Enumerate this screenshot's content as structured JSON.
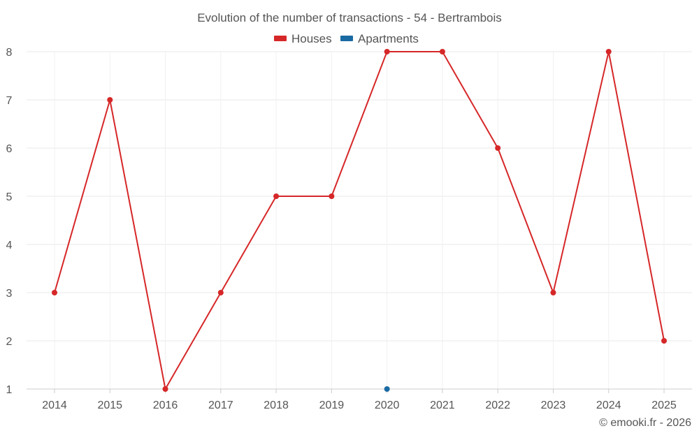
{
  "chart_data": {
    "type": "line",
    "title": "Evolution of the number of transactions - 54 - Bertrambois",
    "categories": [
      "2014",
      "2015",
      "2016",
      "2017",
      "2018",
      "2019",
      "2020",
      "2021",
      "2022",
      "2023",
      "2024",
      "2025"
    ],
    "series": [
      {
        "name": "Houses",
        "color": "#d62728",
        "values": [
          3,
          7,
          1,
          3,
          5,
          5,
          8,
          8,
          6,
          3,
          8,
          2
        ]
      },
      {
        "name": "Apartments",
        "color": "#1a6aa3",
        "values": [
          null,
          null,
          null,
          null,
          null,
          null,
          1,
          null,
          null,
          null,
          null,
          null
        ]
      }
    ],
    "yticks": [
      "1",
      "2",
      "3",
      "4",
      "5",
      "6",
      "7",
      "8"
    ],
    "ylim": [
      1,
      8
    ],
    "grid": true,
    "legend_position": "top-center",
    "credit": "© emooki.fr - 2026"
  }
}
